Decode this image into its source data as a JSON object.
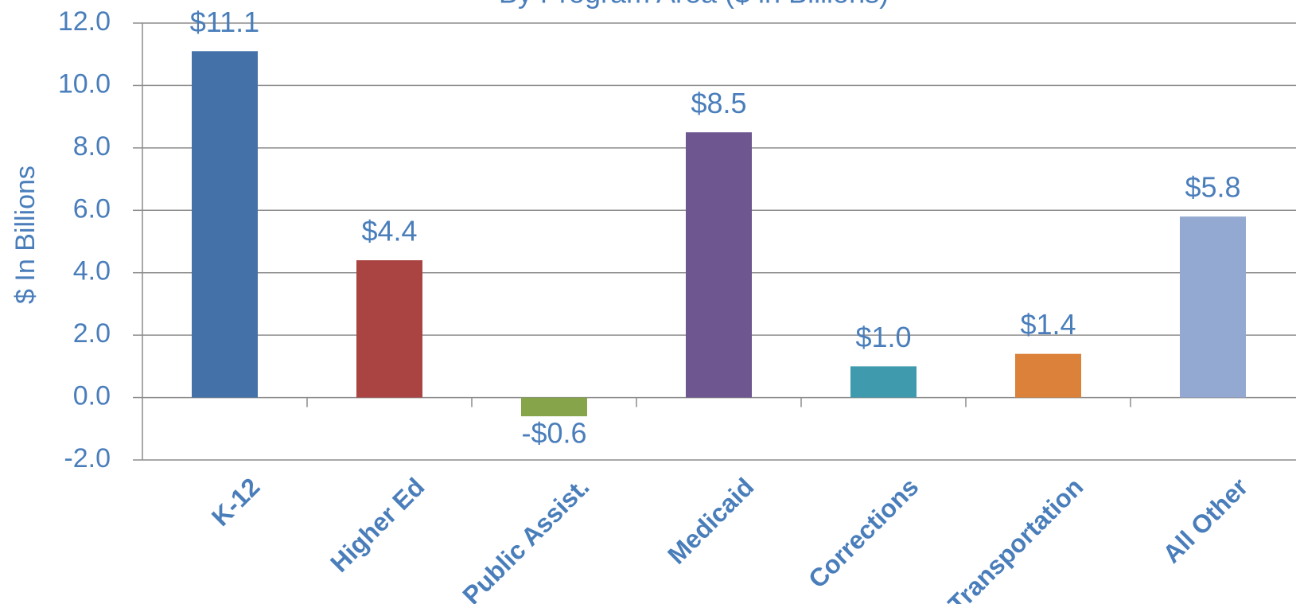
{
  "chart_data": {
    "type": "bar",
    "title": "By Program Area ($ in Billions)",
    "y_label": "$ In Billions",
    "categories": [
      "K-12",
      "Higher Ed",
      "Public Assist.",
      "Medicaid",
      "Corrections",
      "Transportation",
      "All Other"
    ],
    "values": [
      11.1,
      4.4,
      -0.6,
      8.5,
      1.0,
      1.4,
      5.8
    ],
    "value_labels": [
      "$11.1",
      "$4.4",
      "-$0.6",
      "$8.5",
      "$1.0",
      "$1.4",
      "$5.8"
    ],
    "colors": [
      "#4472a8",
      "#a94442",
      "#86a44a",
      "#6e5690",
      "#3f9aae",
      "#dc8139",
      "#93a9d1"
    ],
    "ylim": [
      -2,
      12
    ],
    "yticks": [
      {
        "value": -2,
        "label": "-2.0"
      },
      {
        "value": 0,
        "label": "0.0"
      },
      {
        "value": 2,
        "label": "2.0"
      },
      {
        "value": 4,
        "label": "4.0"
      },
      {
        "value": 6,
        "label": "6.0"
      },
      {
        "value": 8,
        "label": "8.0"
      },
      {
        "value": 10,
        "label": "10.0"
      },
      {
        "value": 12,
        "label": "12.0"
      }
    ],
    "grid": true
  }
}
